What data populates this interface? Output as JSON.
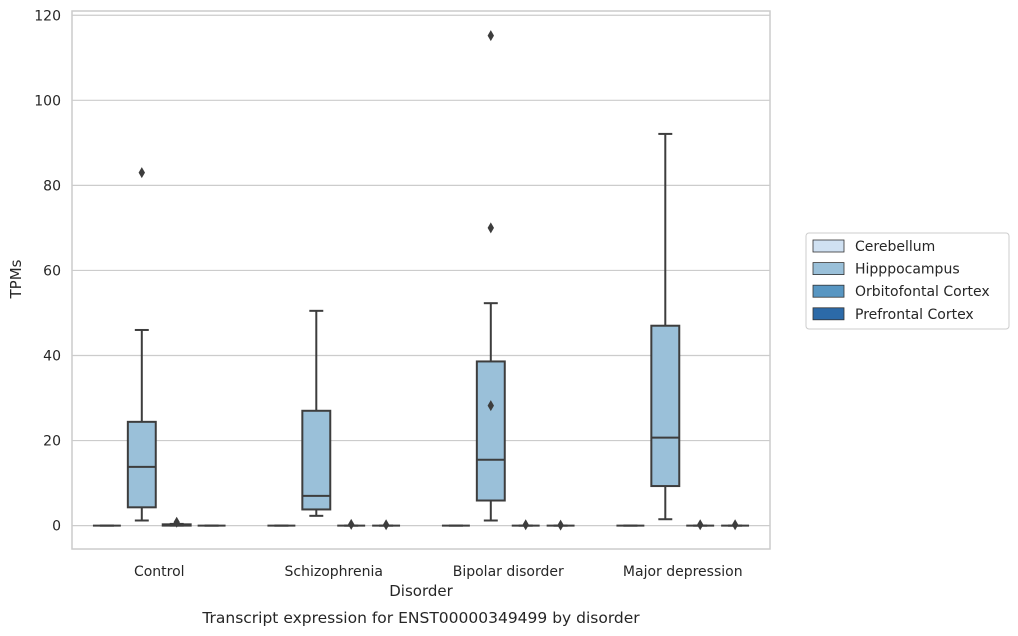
{
  "chart_data": {
    "type": "boxplot",
    "caption": "Transcript expression for ENST00000349499 by disorder",
    "xlabel": "Disorder",
    "ylabel": "TPMs",
    "ylim": [
      -5.5,
      121
    ],
    "yticks": [
      0,
      20,
      40,
      60,
      80,
      100,
      120
    ],
    "grid": true,
    "legend_position": "right",
    "categories": [
      "Control",
      "Schizophrenia",
      "Bipolar disorder",
      "Major depression"
    ],
    "series": [
      {
        "name": "Cerebellum",
        "color": "#d0e1f2",
        "boxes": [
          {
            "q1": 0,
            "median": 0,
            "q3": 0,
            "whisker_low": 0,
            "whisker_high": 0,
            "outliers": []
          },
          {
            "q1": 0,
            "median": 0,
            "q3": 0,
            "whisker_low": 0,
            "whisker_high": 0,
            "outliers": []
          },
          {
            "q1": 0,
            "median": 0,
            "q3": 0,
            "whisker_low": 0,
            "whisker_high": 0,
            "outliers": []
          },
          {
            "q1": 0,
            "median": 0,
            "q3": 0,
            "whisker_low": 0,
            "whisker_high": 0,
            "outliers": []
          }
        ]
      },
      {
        "name": "Hipppocampus",
        "color": "#9ac0d9",
        "boxes": [
          {
            "q1": 4.3,
            "median": 13.8,
            "q3": 24.4,
            "whisker_low": 1.2,
            "whisker_high": 46,
            "outliers": [
              83
            ]
          },
          {
            "q1": 3.8,
            "median": 7,
            "q3": 27,
            "whisker_low": 2.3,
            "whisker_high": 50.5,
            "outliers": []
          },
          {
            "q1": 5.9,
            "median": 15.5,
            "q3": 38.6,
            "whisker_low": 1.2,
            "whisker_high": 52.3,
            "outliers": [
              28.2,
              70,
              115.2
            ]
          },
          {
            "q1": 9.3,
            "median": 20.7,
            "q3": 47,
            "whisker_low": 1.5,
            "whisker_high": 92.1,
            "outliers": []
          }
        ]
      },
      {
        "name": "Orbitofontal Cortex",
        "color": "#5896c2",
        "boxes": [
          {
            "q1": 0,
            "median": 0.1,
            "q3": 0.3,
            "whisker_low": 0,
            "whisker_high": 0.4,
            "outliers": [
              0.8
            ]
          },
          {
            "q1": 0,
            "median": 0,
            "q3": 0,
            "whisker_low": 0,
            "whisker_high": 0,
            "outliers": [
              0.3
            ]
          },
          {
            "q1": 0,
            "median": 0,
            "q3": 0,
            "whisker_low": 0,
            "whisker_high": 0,
            "outliers": [
              0.2
            ]
          },
          {
            "q1": 0,
            "median": 0,
            "q3": 0,
            "whisker_low": 0,
            "whisker_high": 0,
            "outliers": [
              0.2
            ]
          }
        ]
      },
      {
        "name": "Prefrontal Cortex",
        "color": "#2c6aa8",
        "boxes": [
          {
            "q1": 0,
            "median": 0,
            "q3": 0,
            "whisker_low": 0,
            "whisker_high": 0,
            "outliers": []
          },
          {
            "q1": 0,
            "median": 0,
            "q3": 0,
            "whisker_low": 0,
            "whisker_high": 0,
            "outliers": [
              0.2
            ]
          },
          {
            "q1": 0,
            "median": 0,
            "q3": 0,
            "whisker_low": 0,
            "whisker_high": 0,
            "outliers": [
              0.1
            ]
          },
          {
            "q1": 0,
            "median": 0,
            "q3": 0,
            "whisker_low": 0,
            "whisker_high": 0,
            "outliers": [
              0.2
            ]
          }
        ]
      }
    ]
  }
}
